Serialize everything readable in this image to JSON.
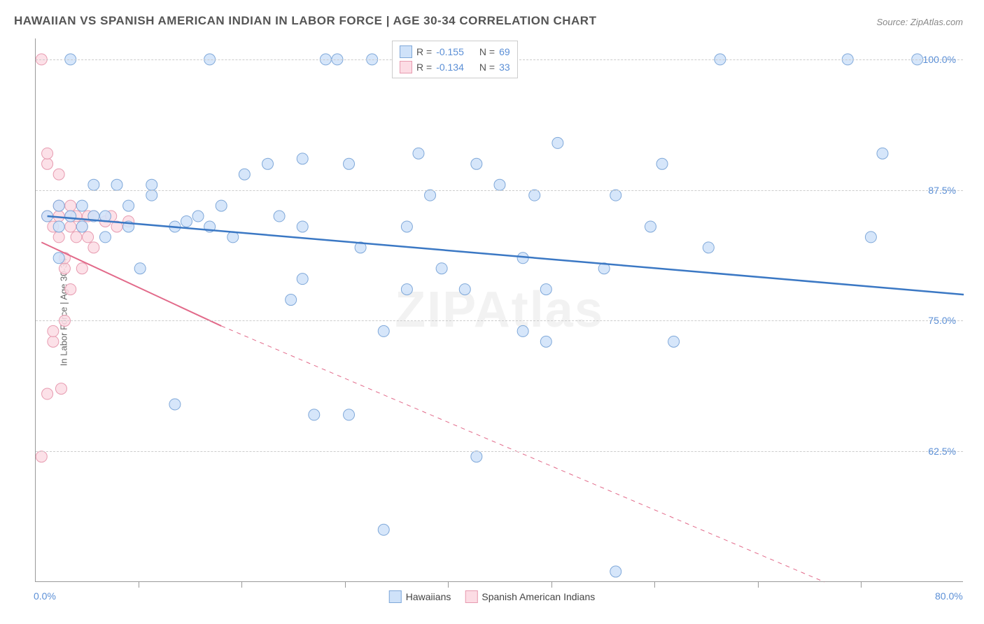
{
  "title": "HAWAIIAN VS SPANISH AMERICAN INDIAN IN LABOR FORCE | AGE 30-34 CORRELATION CHART",
  "source": "Source: ZipAtlas.com",
  "ylabel": "In Labor Force | Age 30-34",
  "watermark": "ZIPAtlas",
  "xlim": [
    0,
    80
  ],
  "ylim": [
    50,
    102
  ],
  "x_ticks": [
    0,
    80
  ],
  "x_tick_labels": [
    "0.0%",
    "80.0%"
  ],
  "x_minor_ticks": [
    8.9,
    17.8,
    26.7,
    35.6,
    44.5,
    53.4,
    62.3,
    71.2
  ],
  "y_ticks": [
    62.5,
    75.0,
    87.5,
    100.0
  ],
  "y_tick_labels": [
    "62.5%",
    "75.0%",
    "87.5%",
    "100.0%"
  ],
  "series": [
    {
      "name": "Hawaiians",
      "color_fill": "#cfe2f9",
      "color_stroke": "#7fa8d9",
      "line_color": "#3b78c4",
      "marker_radius": 8,
      "R": -0.155,
      "N": 69,
      "trend": {
        "x1": 1,
        "y1": 85.0,
        "x2": 80,
        "y2": 77.5,
        "dash": false
      },
      "points": [
        [
          1,
          85
        ],
        [
          2,
          84
        ],
        [
          2,
          86
        ],
        [
          2,
          81
        ],
        [
          3,
          85
        ],
        [
          3,
          100
        ],
        [
          4,
          84
        ],
        [
          4,
          86
        ],
        [
          5,
          85
        ],
        [
          5,
          88
        ],
        [
          6,
          85
        ],
        [
          6,
          83
        ],
        [
          7,
          88
        ],
        [
          8,
          86
        ],
        [
          8,
          84
        ],
        [
          9,
          80
        ],
        [
          10,
          87
        ],
        [
          10,
          88
        ],
        [
          12,
          84
        ],
        [
          12,
          67
        ],
        [
          13,
          84.5
        ],
        [
          14,
          85
        ],
        [
          15,
          100
        ],
        [
          15,
          84
        ],
        [
          16,
          86
        ],
        [
          17,
          83
        ],
        [
          18,
          89
        ],
        [
          20,
          90
        ],
        [
          21,
          85
        ],
        [
          22,
          77
        ],
        [
          23,
          84
        ],
        [
          23,
          90.5
        ],
        [
          23,
          79
        ],
        [
          24,
          66
        ],
        [
          25,
          100
        ],
        [
          26,
          100
        ],
        [
          27,
          90
        ],
        [
          27,
          66
        ],
        [
          28,
          82
        ],
        [
          29,
          100
        ],
        [
          30,
          55
        ],
        [
          30,
          74
        ],
        [
          32,
          84
        ],
        [
          32,
          78
        ],
        [
          33,
          91
        ],
        [
          34,
          87
        ],
        [
          35,
          80
        ],
        [
          37,
          78
        ],
        [
          38,
          90
        ],
        [
          38,
          62
        ],
        [
          40,
          88
        ],
        [
          42,
          81
        ],
        [
          42,
          74
        ],
        [
          43,
          87
        ],
        [
          44,
          78
        ],
        [
          44,
          73
        ],
        [
          45,
          92
        ],
        [
          49,
          80
        ],
        [
          50,
          87
        ],
        [
          50,
          51
        ],
        [
          53,
          84
        ],
        [
          54,
          90
        ],
        [
          55,
          73
        ],
        [
          58,
          82
        ],
        [
          59,
          100
        ],
        [
          70,
          100
        ],
        [
          72,
          83
        ],
        [
          73,
          91
        ],
        [
          76,
          100
        ]
      ]
    },
    {
      "name": "Spanish American Indians",
      "color_fill": "#fcdce4",
      "color_stroke": "#e79bb0",
      "line_color": "#e26a8a",
      "marker_radius": 8,
      "R": -0.134,
      "N": 33,
      "trend_solid": {
        "x1": 0.5,
        "y1": 82.5,
        "x2": 16,
        "y2": 74.5
      },
      "trend_dash": {
        "x1": 16,
        "y1": 74.5,
        "x2": 68,
        "y2": 50
      },
      "points": [
        [
          0.5,
          100
        ],
        [
          0.5,
          62
        ],
        [
          1,
          90
        ],
        [
          1,
          91
        ],
        [
          1,
          85
        ],
        [
          1,
          68
        ],
        [
          1.5,
          73
        ],
        [
          1.5,
          74
        ],
        [
          1.5,
          84
        ],
        [
          2,
          85
        ],
        [
          2,
          89
        ],
        [
          2,
          83
        ],
        [
          2,
          86
        ],
        [
          2.2,
          68.5
        ],
        [
          2.5,
          80
        ],
        [
          2.5,
          81
        ],
        [
          2.5,
          75
        ],
        [
          3,
          84
        ],
        [
          3,
          85
        ],
        [
          3,
          86
        ],
        [
          3,
          78
        ],
        [
          3.5,
          83
        ],
        [
          3.5,
          85
        ],
        [
          4,
          84
        ],
        [
          4,
          80
        ],
        [
          4.5,
          85
        ],
        [
          4.5,
          83
        ],
        [
          5,
          85
        ],
        [
          5,
          82
        ],
        [
          6,
          84.5
        ],
        [
          6.5,
          85
        ],
        [
          7,
          84
        ],
        [
          8,
          84.5
        ]
      ]
    }
  ],
  "legend_bottom": [
    "Hawaiians",
    "Spanish American Indians"
  ]
}
